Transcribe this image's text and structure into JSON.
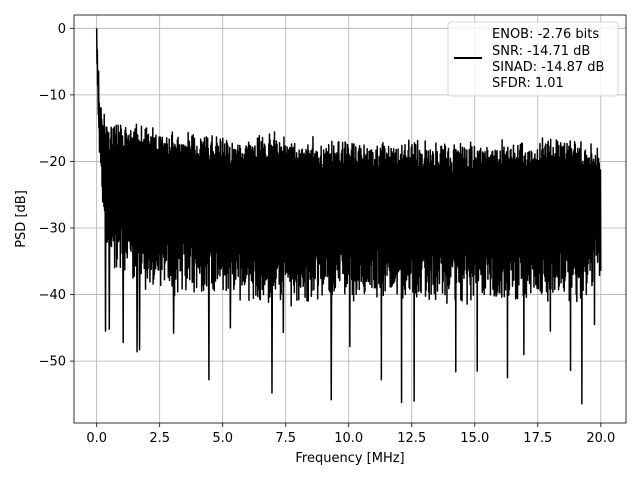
{
  "chart_data": {
    "type": "line",
    "title": "",
    "xlabel": "Frequency [MHz]",
    "ylabel": "PSD [dB]",
    "xlim": [
      -0.9,
      21.0
    ],
    "ylim": [
      -59.3,
      2.0
    ],
    "xticks": [
      0.0,
      2.5,
      5.0,
      7.5,
      10.0,
      12.5,
      15.0,
      17.5,
      20.0
    ],
    "xtick_labels": [
      "0.0",
      "2.5",
      "5.0",
      "7.5",
      "10.0",
      "12.5",
      "15.0",
      "17.5",
      "20.0"
    ],
    "yticks": [
      0,
      -10,
      -20,
      -30,
      -40,
      -50
    ],
    "ytick_labels": [
      "0",
      "−10",
      "−20",
      "−30",
      "−40",
      "−50"
    ],
    "grid": true,
    "legend_position": "upper right",
    "legend_lines": [
      "ENOB: -2.76 bits",
      "SNR: -14.71 dB",
      "SINAD: -14.87 dB",
      "SFDR: 1.01"
    ],
    "series_color": "#000000",
    "series": [
      {
        "name": "ENOB: -2.76 bits",
        "description_points": {
          "x": [
            0.0,
            0.02,
            0.05,
            0.1,
            0.15,
            0.2,
            0.3,
            0.4,
            0.5,
            1.0,
            1.5,
            2.0,
            3.0,
            4.0,
            5.0,
            6.0,
            7.0,
            8.0,
            9.0,
            10.0,
            11.0,
            12.0,
            13.0,
            14.0,
            15.0,
            16.0,
            17.0,
            18.0,
            19.0,
            20.0
          ],
          "upper": [
            0.0,
            -3.0,
            -6.0,
            -9.0,
            -11.0,
            -12.0,
            -13.5,
            -14.5,
            -15.0,
            -15.5,
            -15.5,
            -16.0,
            -16.5,
            -17.0,
            -17.5,
            -17.5,
            -17.0,
            -18.0,
            -18.0,
            -18.0,
            -18.0,
            -18.5,
            -18.0,
            -18.5,
            -18.5,
            -18.5,
            -18.5,
            -17.5,
            -18.0,
            -19.0
          ],
          "upper_jitter": 3.5,
          "lower": [
            -6.0,
            -10.0,
            -14.0,
            -18.0,
            -22.0,
            -25.0,
            -30.0,
            -33.0,
            -34.0,
            -36.0,
            -37.0,
            -38.0,
            -39.0,
            -39.0,
            -39.0,
            -40.0,
            -40.0,
            -40.0,
            -40.0,
            -40.0,
            -40.0,
            -40.0,
            -40.0,
            -40.0,
            -40.0,
            -40.0,
            -40.0,
            -40.0,
            -40.0,
            -38.0
          ],
          "lower_jitter": 4.0
        },
        "deep_nulls": [
          {
            "x": 0.35,
            "y": -45.5
          },
          {
            "x": 0.5,
            "y": -45.2
          },
          {
            "x": 1.05,
            "y": -47.2
          },
          {
            "x": 1.6,
            "y": -48.6
          },
          {
            "x": 1.7,
            "y": -48.3
          },
          {
            "x": 3.05,
            "y": -45.8
          },
          {
            "x": 4.45,
            "y": -52.8
          },
          {
            "x": 5.3,
            "y": -45.0
          },
          {
            "x": 6.95,
            "y": -54.8
          },
          {
            "x": 7.4,
            "y": -45.7
          },
          {
            "x": 9.3,
            "y": -55.8
          },
          {
            "x": 10.05,
            "y": -47.8
          },
          {
            "x": 11.3,
            "y": -52.8
          },
          {
            "x": 12.1,
            "y": -56.2
          },
          {
            "x": 12.6,
            "y": -56.0
          },
          {
            "x": 14.25,
            "y": -51.6
          },
          {
            "x": 15.1,
            "y": -51.5
          },
          {
            "x": 16.3,
            "y": -52.5
          },
          {
            "x": 16.95,
            "y": -49.0
          },
          {
            "x": 18.0,
            "y": -45.5
          },
          {
            "x": 18.8,
            "y": -51.4
          },
          {
            "x": 19.25,
            "y": -56.4
          },
          {
            "x": 19.75,
            "y": -44.5
          }
        ],
        "n_points": 1600
      }
    ]
  }
}
